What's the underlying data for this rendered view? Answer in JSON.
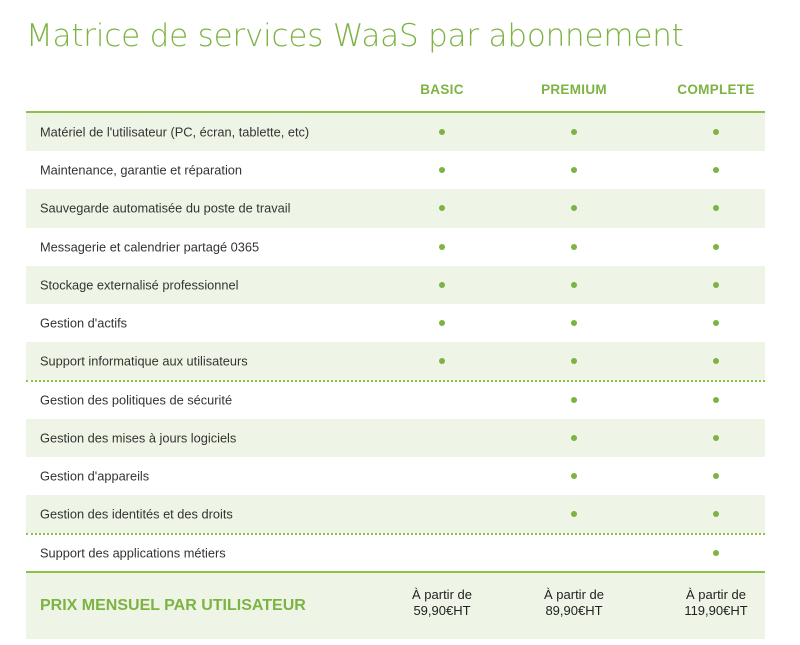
{
  "title": "Matrice de services WaaS par abonnement",
  "columns": [
    "BASIC",
    "PREMIUM",
    "COMPLETE"
  ],
  "rows": [
    {
      "label": "Matériel de l'utilisateur (PC, écran, tablette, etc)",
      "basic": true,
      "premium": true,
      "complete": true
    },
    {
      "label": "Maintenance, garantie et réparation",
      "basic": true,
      "premium": true,
      "complete": true
    },
    {
      "label": "Sauvegarde automatisée du poste de travail",
      "basic": true,
      "premium": true,
      "complete": true
    },
    {
      "label": "Messagerie et calendrier partagé 0365",
      "basic": true,
      "premium": true,
      "complete": true
    },
    {
      "label": "Stockage externalisé professionnel",
      "basic": true,
      "premium": true,
      "complete": true
    },
    {
      "label": "Gestion d'actifs",
      "basic": true,
      "premium": true,
      "complete": true
    },
    {
      "label": "Support informatique aux utilisateurs",
      "basic": true,
      "premium": true,
      "complete": true
    },
    {
      "label": "Gestion des politiques de sécurité",
      "basic": false,
      "premium": true,
      "complete": true
    },
    {
      "label": "Gestion des mises à jours logiciels",
      "basic": false,
      "premium": true,
      "complete": true
    },
    {
      "label": "Gestion d'appareils",
      "basic": false,
      "premium": true,
      "complete": true
    },
    {
      "label": "Gestion des identités et des droits",
      "basic": false,
      "premium": true,
      "complete": true
    },
    {
      "label": "Support des applications métiers",
      "basic": false,
      "premium": false,
      "complete": true
    }
  ],
  "price": {
    "label": "PRIX MENSUEL PAR UTILISATEUR",
    "prefix": "À partir de",
    "basic": "59,90€HT",
    "premium": "89,90€HT",
    "complete": "119,90€HT"
  },
  "colors": {
    "accent": "#7cb342",
    "row_alt": "#eff5e6"
  }
}
